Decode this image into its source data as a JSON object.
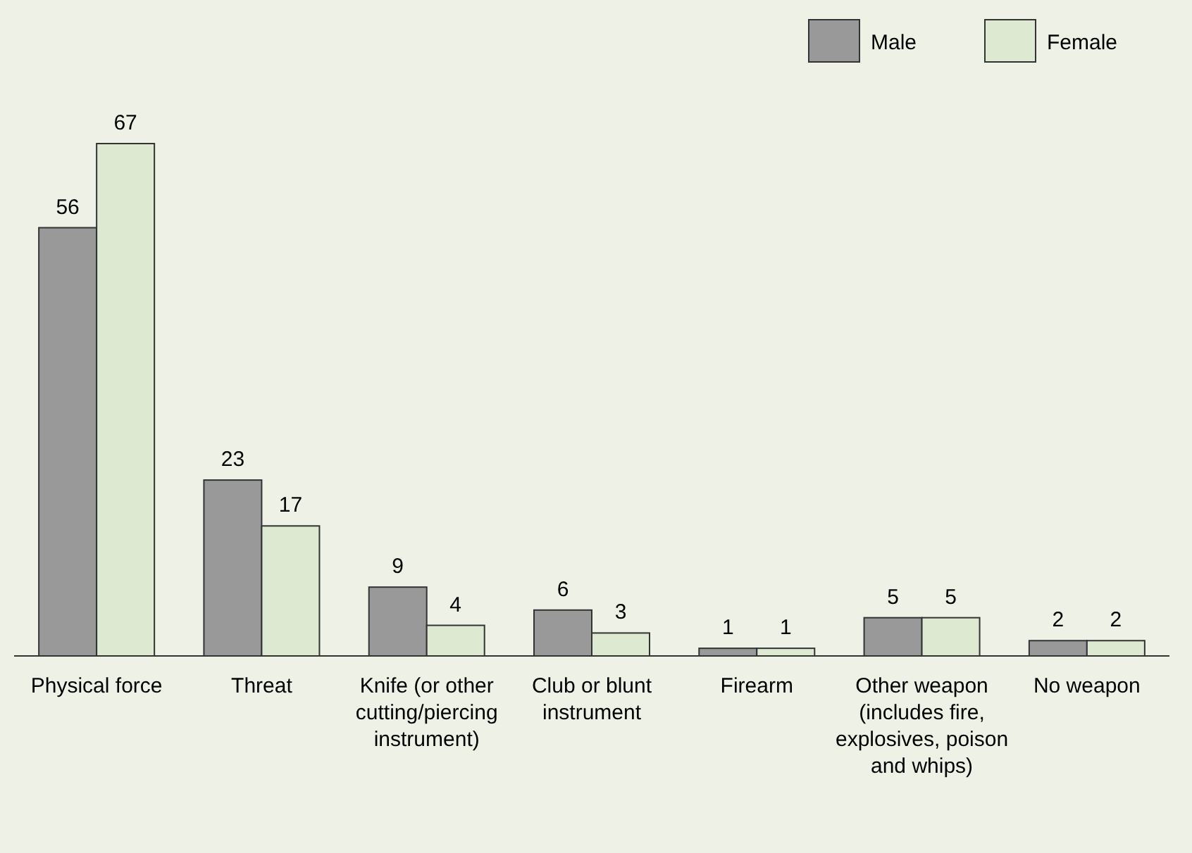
{
  "chart_data": {
    "type": "bar",
    "categories": [
      "Physical force",
      "Threat",
      "Knife (or other cutting/piercing instrument)",
      "Club or blunt instrument",
      "Firearm",
      "Other weapon (includes fire, explosives, poison and whips)",
      "No weapon"
    ],
    "series": [
      {
        "name": "Male",
        "color": "#999999",
        "values": [
          56,
          23,
          9,
          6,
          1,
          5,
          2
        ]
      },
      {
        "name": "Female",
        "color": "#dde9d0",
        "values": [
          67,
          17,
          4,
          3,
          1,
          5,
          2
        ]
      }
    ],
    "data_labels": true,
    "legend": "top right"
  }
}
